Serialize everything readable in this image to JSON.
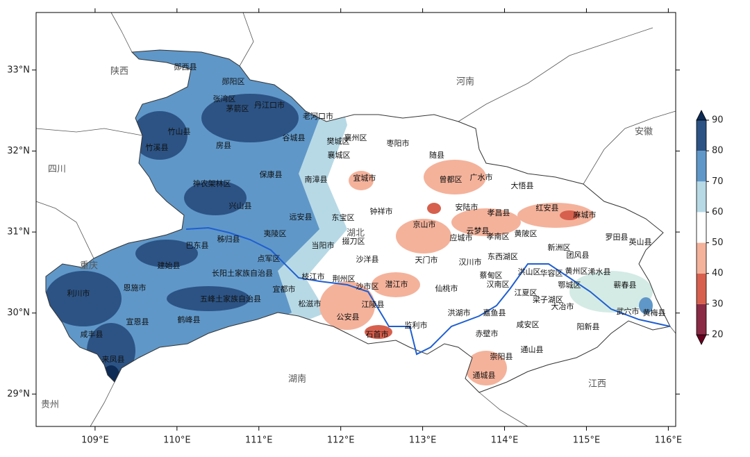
{
  "map": {
    "xlim": [
      108.28,
      116.09
    ],
    "ylim": [
      28.6,
      33.71
    ],
    "xticks": [
      {
        "value": 109,
        "label": "109°E"
      },
      {
        "value": 110,
        "label": "110°E"
      },
      {
        "value": 111,
        "label": "111°E"
      },
      {
        "value": 112,
        "label": "112°E"
      },
      {
        "value": 113,
        "label": "113°E"
      },
      {
        "value": 114,
        "label": "114°E"
      },
      {
        "value": 115,
        "label": "115°E"
      },
      {
        "value": 116,
        "label": "116°E"
      }
    ],
    "yticks": [
      {
        "value": 29,
        "label": "29°N"
      },
      {
        "value": 30,
        "label": "30°N"
      },
      {
        "value": 31,
        "label": "31°N"
      },
      {
        "value": 32,
        "label": "32°N"
      },
      {
        "value": 33,
        "label": "33°N"
      }
    ],
    "provinces": [
      "陕西",
      "河南",
      "安徽",
      "四川",
      "重庆",
      "湖南",
      "江西",
      "贵州",
      "湖北"
    ],
    "places": [
      "郧西县",
      "郧阳区",
      "张湾区",
      "茅箭区",
      "丹江口市",
      "老河口市",
      "竹山县",
      "竹溪县",
      "房县",
      "谷城县",
      "襄州区",
      "樊城区",
      "枣阳市",
      "襄城区",
      "随县",
      "神农架林区",
      "保康县",
      "南漳县",
      "宜城市",
      "曾都区",
      "广水市",
      "大悟县",
      "兴山县",
      "钟祥市",
      "安陆市",
      "孝昌县",
      "红安县",
      "麻城市",
      "远安县",
      "东宝区",
      "京山市",
      "云梦县",
      "应城市",
      "孝南区",
      "黄陂区",
      "罗田县",
      "英山县",
      "秭归县",
      "夷陵区",
      "巴东县",
      "当阳市",
      "掇刀区",
      "新洲区",
      "团风县",
      "点军区",
      "沙洋县",
      "天门市",
      "汉川市",
      "东西湖区",
      "建始县",
      "长阳土家族自治县",
      "枝江市",
      "荆州区",
      "蔡甸区",
      "浠水县",
      "恩施市",
      "利川市",
      "宜都市",
      "沙市区",
      "潜江市",
      "仙桃市",
      "汉南区",
      "洪山区",
      "华容区",
      "黄州区",
      "鄂城区",
      "蕲春县",
      "江夏区",
      "梁子湖区",
      "大冶市",
      "五峰土家族自治县",
      "松滋市",
      "江陵县",
      "武穴市",
      "黄梅县",
      "洪湖市",
      "嘉鱼县",
      "宣恩县",
      "鹤峰县",
      "公安县",
      "监利市",
      "咸安区",
      "阳新县",
      "石首市",
      "赤壁市",
      "咸丰县",
      "通山县",
      "来凤县",
      "崇阳县",
      "通城县"
    ],
    "colorbar": {
      "ticks": [
        20,
        30,
        40,
        50,
        60,
        70,
        80,
        90
      ],
      "colors": [
        "#67001f",
        "#8a2a45",
        "#d6604d",
        "#f4b29b",
        "#ffffff",
        "#b7d9e6",
        "#5f97c8",
        "#2c5384",
        "#0d2b55"
      ]
    }
  }
}
